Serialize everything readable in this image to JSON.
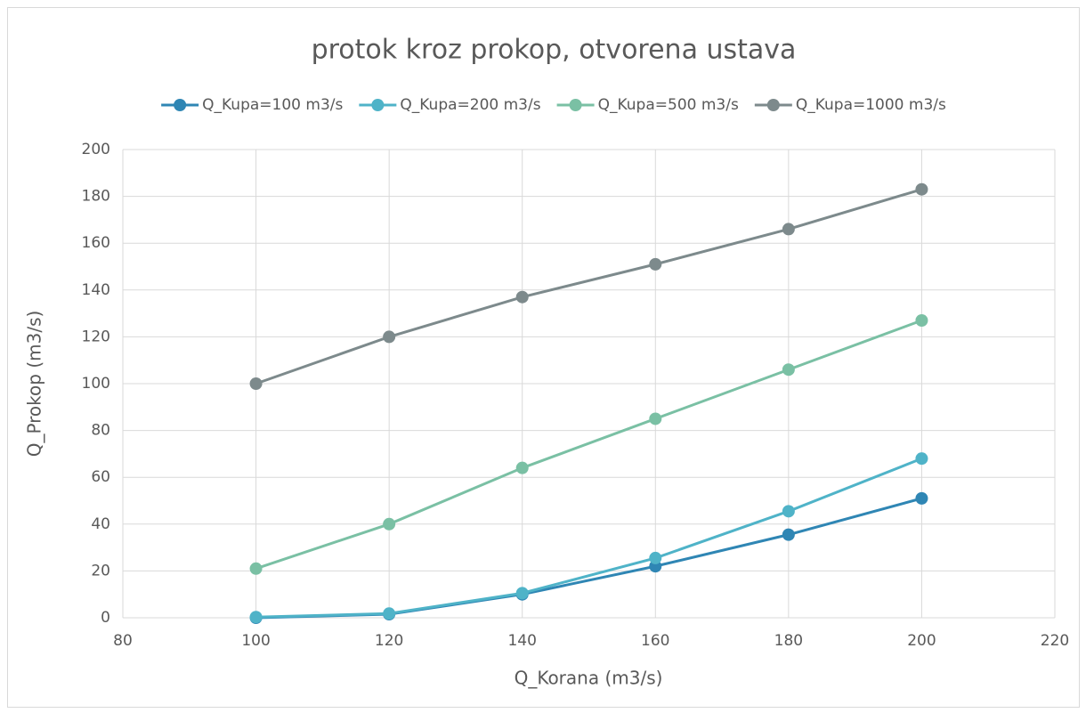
{
  "chart_data": {
    "type": "line",
    "title": "protok kroz prokop, otvorena ustava",
    "x_label": "Q_Korana (m3/s)",
    "y_label": "Q_Prokop (m3/s)",
    "x": [
      100,
      120,
      140,
      160,
      180,
      200
    ],
    "series": [
      {
        "name": "Q_Kupa=100 m3/s",
        "color": "#2f86b4",
        "values": [
          0,
          1.5,
          10,
          22,
          35.5,
          51
        ]
      },
      {
        "name": "Q_Kupa=200 m3/s",
        "color": "#4fb3c8",
        "values": [
          0.3,
          1.8,
          10.5,
          25.5,
          45.5,
          68
        ]
      },
      {
        "name": "Q_Kupa=500 m3/s",
        "color": "#7ac0a4",
        "values": [
          21,
          40,
          64,
          85,
          106,
          127
        ]
      },
      {
        "name": "Q_Kupa=1000 m3/s",
        "color": "#7d8a8c",
        "values": [
          100,
          120,
          137,
          151,
          166,
          183
        ]
      }
    ],
    "xlim": [
      80,
      220
    ],
    "xticks": [
      80,
      100,
      120,
      140,
      160,
      180,
      200,
      220
    ],
    "ylim": [
      0,
      200
    ],
    "yticks": [
      0,
      20,
      40,
      60,
      80,
      100,
      120,
      140,
      160,
      180,
      200
    ],
    "grid": true,
    "legend": "top"
  }
}
